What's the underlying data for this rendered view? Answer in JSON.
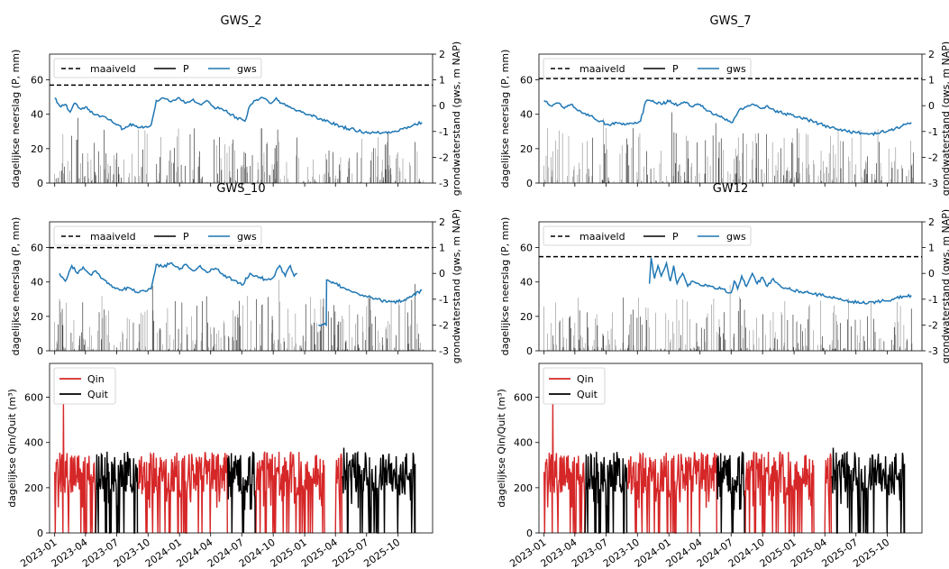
{
  "chart_data": [
    {
      "type": "line",
      "title": "GWS_2",
      "ylabel": "dagelijkse neerslag (P, mm)",
      "y2label": "grondwaterstand (gws, m NAP)",
      "ylim": [
        0,
        75
      ],
      "y2lim": [
        -3,
        2
      ],
      "yticks": [
        0,
        20,
        40,
        60
      ],
      "y2ticks": [
        -3,
        -2,
        -1,
        0,
        1,
        2
      ],
      "legend": [
        "maaiveld",
        "P",
        "gws"
      ],
      "legend_position": "top-left",
      "maaiveld": 0.8,
      "gws": [
        [
          "2023-01-01",
          0.3
        ],
        [
          "2023-01-15",
          0.0
        ],
        [
          "2023-02-01",
          0.05
        ],
        [
          "2023-02-15",
          -0.25
        ],
        [
          "2023-03-01",
          0.1
        ],
        [
          "2023-03-15",
          -0.1
        ],
        [
          "2023-04-01",
          -0.05
        ],
        [
          "2023-04-15",
          -0.25
        ],
        [
          "2023-05-01",
          -0.35
        ],
        [
          "2023-05-20",
          -0.4
        ],
        [
          "2023-06-10",
          -0.55
        ],
        [
          "2023-07-01",
          -0.75
        ],
        [
          "2023-07-20",
          -0.9
        ],
        [
          "2023-08-10",
          -0.7
        ],
        [
          "2023-09-01",
          -0.85
        ],
        [
          "2023-09-25",
          -0.8
        ],
        [
          "2023-10-10",
          -0.75
        ],
        [
          "2023-10-25",
          0.2
        ],
        [
          "2023-11-15",
          0.3
        ],
        [
          "2023-12-05",
          0.15
        ],
        [
          "2024-01-01",
          0.3
        ],
        [
          "2024-01-20",
          0.1
        ],
        [
          "2024-02-10",
          0.25
        ],
        [
          "2024-03-01",
          0.05
        ],
        [
          "2024-03-20",
          0.2
        ],
        [
          "2024-04-10",
          -0.05
        ],
        [
          "2024-05-01",
          -0.1
        ],
        [
          "2024-05-25",
          -0.3
        ],
        [
          "2024-06-15",
          -0.45
        ],
        [
          "2024-07-10",
          -0.6
        ],
        [
          "2024-07-25",
          0.0
        ],
        [
          "2024-08-10",
          0.2
        ],
        [
          "2024-09-01",
          0.3
        ],
        [
          "2024-09-20",
          0.1
        ],
        [
          "2024-10-10",
          0.3
        ],
        [
          "2024-10-25",
          0.1
        ],
        [
          "2024-11-15",
          -0.05
        ],
        [
          "2024-12-15",
          -0.2
        ],
        [
          "2025-01-15",
          -0.35
        ],
        [
          "2025-02-15",
          -0.5
        ],
        [
          "2025-03-15",
          -0.65
        ],
        [
          "2025-04-15",
          -0.8
        ],
        [
          "2025-05-15",
          -0.9
        ],
        [
          "2025-06-15",
          -1.0
        ],
        [
          "2025-07-15",
          -1.05
        ],
        [
          "2025-08-15",
          -1.05
        ],
        [
          "2025-09-15",
          -1.0
        ],
        [
          "2025-10-15",
          -0.9
        ],
        [
          "2025-11-15",
          -0.75
        ],
        [
          "2025-12-10",
          -0.65
        ]
      ]
    },
    {
      "type": "line",
      "title": "GWS_7",
      "ylabel": "dagelijkse neerslag (P, mm)",
      "y2label": "grondwaterstand (gws, m NAP)",
      "ylim": [
        0,
        75
      ],
      "y2lim": [
        -3,
        2
      ],
      "yticks": [
        0,
        20,
        40,
        60
      ],
      "y2ticks": [
        -3,
        -2,
        -1,
        0,
        1,
        2
      ],
      "legend": [
        "maaiveld",
        "P",
        "gws"
      ],
      "legend_position": "top-left",
      "maaiveld": 1.05,
      "gws": [
        [
          "2023-01-01",
          0.2
        ],
        [
          "2023-01-20",
          0.0
        ],
        [
          "2023-02-10",
          0.1
        ],
        [
          "2023-03-01",
          -0.1
        ],
        [
          "2023-03-20",
          0.05
        ],
        [
          "2023-04-10",
          -0.2
        ],
        [
          "2023-05-01",
          -0.3
        ],
        [
          "2023-05-25",
          -0.45
        ],
        [
          "2023-06-15",
          -0.6
        ],
        [
          "2023-07-10",
          -0.75
        ],
        [
          "2023-08-01",
          -0.65
        ],
        [
          "2023-08-25",
          -0.75
        ],
        [
          "2023-09-20",
          -0.7
        ],
        [
          "2023-10-10",
          -0.6
        ],
        [
          "2023-10-25",
          0.15
        ],
        [
          "2023-11-15",
          0.2
        ],
        [
          "2023-12-10",
          0.05
        ],
        [
          "2024-01-05",
          0.2
        ],
        [
          "2024-01-25",
          0.0
        ],
        [
          "2024-02-15",
          0.15
        ],
        [
          "2024-03-10",
          -0.05
        ],
        [
          "2024-04-01",
          0.05
        ],
        [
          "2024-04-20",
          -0.2
        ],
        [
          "2024-05-15",
          -0.35
        ],
        [
          "2024-06-10",
          -0.5
        ],
        [
          "2024-07-05",
          -0.65
        ],
        [
          "2024-07-25",
          -0.15
        ],
        [
          "2024-08-15",
          -0.05
        ],
        [
          "2024-09-05",
          0.05
        ],
        [
          "2024-09-25",
          -0.1
        ],
        [
          "2024-10-15",
          0.0
        ],
        [
          "2024-11-05",
          -0.2
        ],
        [
          "2024-12-05",
          -0.3
        ],
        [
          "2025-01-10",
          -0.45
        ],
        [
          "2025-02-10",
          -0.55
        ],
        [
          "2025-03-15",
          -0.7
        ],
        [
          "2025-04-20",
          -0.85
        ],
        [
          "2025-05-25",
          -0.95
        ],
        [
          "2025-07-01",
          -1.05
        ],
        [
          "2025-08-10",
          -1.1
        ],
        [
          "2025-09-10",
          -1.05
        ],
        [
          "2025-10-10",
          -0.95
        ],
        [
          "2025-11-10",
          -0.8
        ],
        [
          "2025-12-10",
          -0.65
        ]
      ]
    },
    {
      "type": "line",
      "title": "GWS_10",
      "ylabel": "dagelijkse neerslag (P, mm)",
      "y2label": "grondwaterstand (gws, m NAP)",
      "ylim": [
        0,
        75
      ],
      "y2lim": [
        -3,
        2
      ],
      "yticks": [
        0,
        20,
        40,
        60
      ],
      "y2ticks": [
        -3,
        -2,
        -1,
        0,
        1,
        2
      ],
      "legend": [
        "maaiveld",
        "P",
        "gws"
      ],
      "legend_position": "top-left",
      "maaiveld": 1.0,
      "gws": [
        [
          "2023-01-15",
          0.0
        ],
        [
          "2023-02-01",
          -0.3
        ],
        [
          "2023-02-20",
          0.3
        ],
        [
          "2023-03-10",
          0.0
        ],
        [
          "2023-03-25",
          0.25
        ],
        [
          "2023-04-15",
          -0.05
        ],
        [
          "2023-05-01",
          0.1
        ],
        [
          "2023-05-20",
          -0.2
        ],
        [
          "2023-06-15",
          -0.45
        ],
        [
          "2023-07-10",
          -0.65
        ],
        [
          "2023-08-05",
          -0.55
        ],
        [
          "2023-09-01",
          -0.75
        ],
        [
          "2023-09-25",
          -0.7
        ],
        [
          "2023-10-10",
          -0.6
        ],
        [
          "2023-10-25",
          0.35
        ],
        [
          "2023-11-15",
          0.25
        ],
        [
          "2023-12-05",
          0.4
        ],
        [
          "2024-01-01",
          0.15
        ],
        [
          "2024-01-20",
          0.35
        ],
        [
          "2024-02-10",
          0.1
        ],
        [
          "2024-03-01",
          0.3
        ],
        [
          "2024-03-25",
          0.05
        ],
        [
          "2024-04-15",
          0.2
        ],
        [
          "2024-05-10",
          -0.1
        ],
        [
          "2024-06-05",
          -0.25
        ],
        [
          "2024-07-01",
          -0.45
        ],
        [
          "2024-07-25",
          0.0
        ],
        [
          "2024-08-15",
          -0.1
        ],
        [
          "2024-09-10",
          -0.25
        ],
        [
          "2024-10-01",
          -0.15
        ],
        [
          "2024-10-20",
          0.3
        ],
        [
          "2024-11-05",
          -0.1
        ],
        [
          "2024-11-20",
          0.3
        ],
        [
          "2024-12-01",
          -0.1
        ],
        [
          "2024-12-10",
          0.0
        ],
        null,
        [
          "2025-02-10",
          -2.0
        ],
        [
          "2025-03-05",
          -2.0
        ],
        [
          "2025-03-06",
          -0.25
        ],
        [
          "2025-04-01",
          -0.4
        ],
        [
          "2025-05-01",
          -0.6
        ],
        [
          "2025-06-01",
          -0.75
        ],
        [
          "2025-07-01",
          -0.9
        ],
        [
          "2025-08-01",
          -1.0
        ],
        [
          "2025-09-01",
          -1.1
        ],
        [
          "2025-10-01",
          -1.1
        ],
        [
          "2025-11-01",
          -0.95
        ],
        [
          "2025-12-10",
          -0.65
        ]
      ]
    },
    {
      "type": "line",
      "title": "GW12",
      "ylabel": "dagelijkse neerslag (P, mm)",
      "y2label": "grondwaterstand (gws, m NAP)",
      "ylim": [
        0,
        75
      ],
      "y2lim": [
        -3,
        2
      ],
      "yticks": [
        0,
        20,
        40,
        60
      ],
      "y2ticks": [
        -3,
        -2,
        -1,
        0,
        1,
        2
      ],
      "legend": [
        "maaiveld",
        "P",
        "gws"
      ],
      "legend_position": "top-left",
      "maaiveld": 0.65,
      "gws": [
        [
          "2023-11-05",
          -0.4
        ],
        [
          "2023-11-10",
          0.6
        ],
        [
          "2023-11-20",
          -0.2
        ],
        [
          "2023-11-30",
          0.3
        ],
        [
          "2023-12-10",
          -0.1
        ],
        [
          "2023-12-25",
          0.4
        ],
        [
          "2024-01-05",
          -0.3
        ],
        [
          "2024-01-15",
          0.3
        ],
        [
          "2024-01-25",
          -0.4
        ],
        [
          "2024-02-10",
          0.0
        ],
        [
          "2024-02-25",
          -0.5
        ],
        [
          "2024-03-10",
          -0.3
        ],
        [
          "2024-04-01",
          -0.45
        ],
        [
          "2024-05-01",
          -0.5
        ],
        [
          "2024-06-01",
          -0.6
        ],
        [
          "2024-07-01",
          -0.75
        ],
        [
          "2024-07-10",
          -0.3
        ],
        [
          "2024-07-20",
          -0.6
        ],
        [
          "2024-08-01",
          -0.1
        ],
        [
          "2024-08-15",
          -0.5
        ],
        [
          "2024-09-01",
          0.0
        ],
        [
          "2024-09-15",
          -0.4
        ],
        [
          "2024-10-01",
          -0.15
        ],
        [
          "2024-10-15",
          -0.5
        ],
        [
          "2024-11-01",
          -0.2
        ],
        [
          "2024-11-20",
          -0.45
        ],
        [
          "2024-12-15",
          -0.6
        ],
        [
          "2025-01-20",
          -0.7
        ],
        [
          "2025-03-01",
          -0.8
        ],
        [
          "2025-04-15",
          -0.9
        ],
        [
          "2025-06-01",
          -1.05
        ],
        [
          "2025-07-15",
          -1.15
        ],
        [
          "2025-09-01",
          -1.1
        ],
        [
          "2025-10-15",
          -1.0
        ],
        [
          "2025-11-20",
          -0.9
        ],
        [
          "2025-12-10",
          -0.85
        ]
      ]
    },
    {
      "type": "line",
      "ylabel": "dagelijkse Qin/Quit (m³)",
      "ylim": [
        0,
        750
      ],
      "yticks": [
        0,
        200,
        400,
        600
      ],
      "xlabels": [
        "2023-01",
        "2023-04",
        "2023-07",
        "2023-10",
        "2024-01",
        "2024-04",
        "2024-07",
        "2024-10",
        "2025-01",
        "2025-04",
        "2025-07",
        "2025-10"
      ],
      "legend": [
        "Qin",
        "Quit"
      ],
      "legend_position": "top-left",
      "series": [
        {
          "name": "Qin",
          "color": "#d62728",
          "periods": [
            [
              "2023-01-01",
              "2023-04-30"
            ],
            [
              "2023-09-01",
              "2024-05-20"
            ],
            [
              "2024-08-10",
              "2025-02-28"
            ],
            [
              "2025-04-01",
              "2025-04-20"
            ]
          ],
          "peak": 590
        },
        {
          "name": "Quit",
          "color": "#000000",
          "periods": [
            [
              "2023-05-01",
              "2023-08-31"
            ],
            [
              "2024-05-21",
              "2024-08-09"
            ],
            [
              "2025-04-21",
              "2025-11-20"
            ]
          ],
          "peak": 440
        }
      ]
    }
  ],
  "colors": {
    "gws": "#1f77b4",
    "qin": "#d62728",
    "quit": "#000000",
    "precip": "#000000"
  }
}
